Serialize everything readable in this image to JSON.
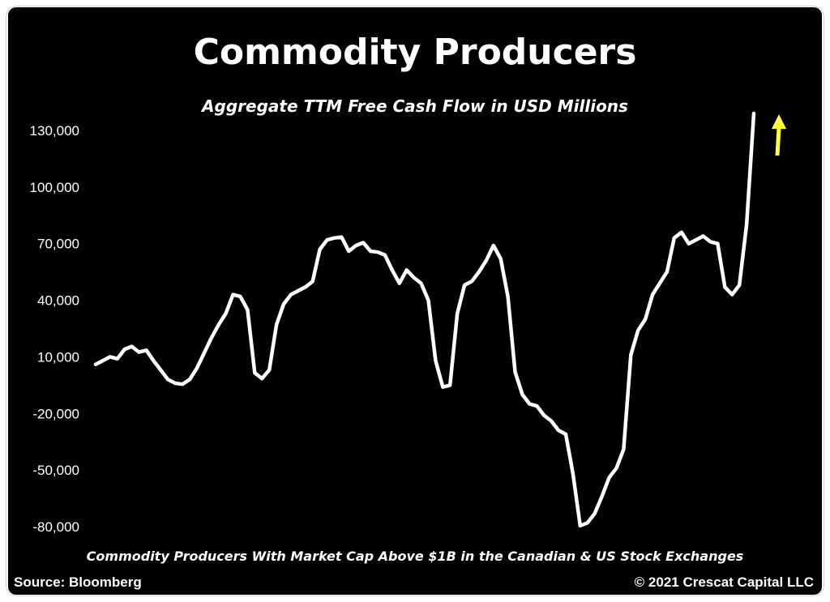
{
  "chart_data": {
    "type": "line",
    "title": "Commodity Producers",
    "subtitle": "Aggregate TTM Free Cash Flow in USD Millions",
    "note": "Commodity Producers With Market Cap Above $1B in the Canadian & US Stock Exchanges",
    "source": "Source: Bloomberg",
    "copyright": "© 2021 Crescat Capital LLC",
    "xlabel": "",
    "ylabel": "",
    "ylim": [
      -80000,
      130000
    ],
    "yticks": [
      130000,
      100000,
      70000,
      40000,
      10000,
      -20000,
      -50000,
      -80000
    ],
    "ytick_labels": [
      "130,000",
      "100,000",
      "70,000",
      "40,000",
      "10,000",
      "-20,000",
      "-50,000",
      "-80,000"
    ],
    "grid": false,
    "colors": {
      "background": "#000000",
      "line": "#ffffff",
      "arrow": "#ffff33",
      "text": "#ffffff"
    },
    "annotations": [
      {
        "type": "arrow",
        "direction": "up",
        "color": "#ffff33"
      }
    ],
    "series": [
      {
        "values": [
          6000,
          8000,
          10000,
          9000,
          14000,
          15500,
          12500,
          13500,
          8000,
          3000,
          -2000,
          -4000,
          -4500,
          -2000,
          4000,
          12000,
          20000,
          27000,
          33000,
          43000,
          42000,
          35000,
          1500,
          -1500,
          3000,
          27000,
          38000,
          43000,
          45000,
          47000,
          50000,
          67000,
          72000,
          73000,
          73500,
          66000,
          69000,
          70500,
          66000,
          65500,
          64000,
          56000,
          49000,
          56000,
          52000,
          49000,
          40000,
          8000,
          -6000,
          -5000,
          33000,
          48000,
          50000,
          55000,
          61000,
          69000,
          62000,
          42000,
          2000,
          -10000,
          -15000,
          -16000,
          -21000,
          -24000,
          -29000,
          -31000,
          -52000,
          -79500,
          -78000,
          -73000,
          -64000,
          -54000,
          -49000,
          -39000,
          11000,
          24000,
          30000,
          43000,
          49000,
          55000,
          73000,
          76000,
          70000,
          72000,
          74000,
          71000,
          70000,
          47000,
          43000,
          48000,
          80000,
          139000
        ]
      }
    ]
  }
}
